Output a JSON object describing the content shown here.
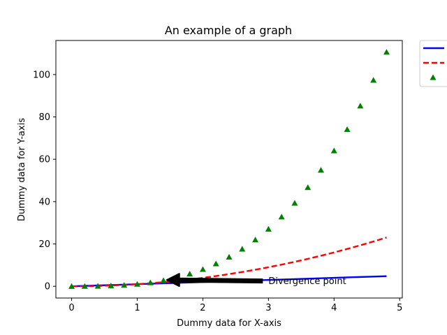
{
  "chart_data": {
    "type": "line",
    "title": "An example of a graph",
    "xlabel": "Dummy data for X-axis",
    "ylabel": "Dummy data for Y-axis",
    "xlim": [
      -0.24,
      5.04
    ],
    "ylim": [
      -5.53,
      116.1
    ],
    "xticks": [
      0,
      1,
      2,
      3,
      4,
      5
    ],
    "yticks": [
      0,
      20,
      40,
      60,
      80,
      100
    ],
    "grid": false,
    "legend": {
      "placement": "outside-top-right"
    },
    "x": [
      0,
      0.2,
      0.4,
      0.6,
      0.8,
      1.0,
      1.2,
      1.4,
      1.6,
      1.8,
      2.0,
      2.2,
      2.4,
      2.6,
      2.8,
      3.0,
      3.2,
      3.4,
      3.6,
      3.8,
      4.0,
      4.2,
      4.4,
      4.6,
      4.8
    ],
    "series": [
      {
        "style": "solid",
        "color": "#0000ff",
        "marker": "none",
        "values": [
          0,
          0.2,
          0.4,
          0.6,
          0.8,
          1.0,
          1.2,
          1.4,
          1.6,
          1.8,
          2.0,
          2.2,
          2.4,
          2.6,
          2.8,
          3.0,
          3.2,
          3.4,
          3.6,
          3.8,
          4.0,
          4.2,
          4.4,
          4.6,
          4.8
        ]
      },
      {
        "style": "dashed",
        "color": "#ff0000",
        "marker": "none",
        "values": [
          0,
          0.04,
          0.16,
          0.36,
          0.64,
          1.0,
          1.44,
          1.96,
          2.56,
          3.24,
          4.0,
          4.84,
          5.76,
          6.76,
          7.84,
          9.0,
          10.24,
          11.56,
          12.96,
          14.44,
          16.0,
          17.64,
          19.36,
          21.16,
          23.04
        ]
      },
      {
        "style": "none",
        "color": "#008000",
        "marker": "triangle",
        "values": [
          0,
          0.008,
          0.064,
          0.216,
          0.512,
          1.0,
          1.728,
          2.744,
          4.096,
          5.832,
          8.0,
          10.648,
          13.824,
          17.576,
          21.952,
          27.0,
          32.768,
          39.304,
          46.656,
          54.872,
          64.0,
          74.088,
          85.184,
          97.336,
          110.592
        ]
      }
    ],
    "annotations": [
      {
        "text": "Divergence point",
        "text_x": 3.0,
        "text_y": 2.5,
        "arrow_to_x": 1.45,
        "arrow_to_y": 3.0
      }
    ]
  }
}
